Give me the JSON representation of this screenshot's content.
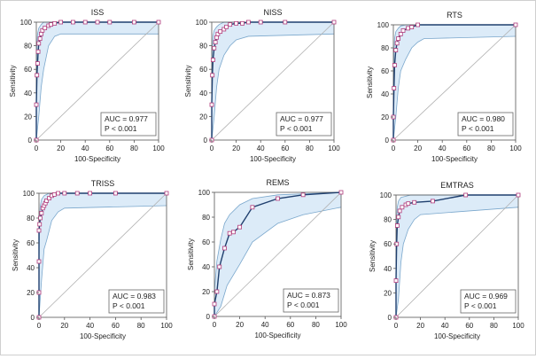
{
  "figure_axis_labels": {
    "x": "100-Specificity",
    "y": "Sensitivity"
  },
  "colors": {
    "curve": "#1f3f6e",
    "band_fill": "#dcebf8",
    "band_edge": "#7aa7cc",
    "diagonal": "#b0b0b0",
    "marker": "#b03a7a",
    "box": "#666666"
  },
  "chart_data": [
    {
      "type": "line",
      "title": "ISS",
      "xlabel": "100-Specificity",
      "ylabel": "Sensitivity",
      "xlim": [
        0,
        100
      ],
      "ylim": [
        0,
        100
      ],
      "xticks": [
        0,
        20,
        40,
        60,
        80,
        100
      ],
      "yticks": [
        0,
        20,
        40,
        60,
        80,
        100
      ],
      "auc": "AUC = 0.977",
      "p": "P < 0.001",
      "series": [
        {
          "name": "ROC",
          "x": [
            0,
            0,
            0.5,
            1,
            1.5,
            2,
            3,
            4,
            5,
            7,
            10,
            12,
            15,
            20,
            30,
            40,
            50,
            60,
            80,
            100
          ],
          "y": [
            0,
            30,
            55,
            65,
            75,
            82,
            86,
            90,
            93,
            95,
            97,
            98,
            99,
            100,
            100,
            100,
            100,
            100,
            100,
            100
          ]
        },
        {
          "name": "CI upper",
          "x": [
            0,
            0.5,
            1,
            2,
            4,
            6,
            8,
            100
          ],
          "y": [
            40,
            80,
            90,
            95,
            98,
            100,
            100,
            100
          ]
        },
        {
          "name": "CI lower",
          "x": [
            0,
            2,
            4,
            6,
            8,
            10,
            15,
            20,
            100
          ],
          "y": [
            0,
            20,
            45,
            60,
            70,
            80,
            88,
            90,
            90
          ]
        }
      ]
    },
    {
      "type": "line",
      "title": "NISS",
      "xlabel": "100-Specificity",
      "ylabel": "Sensitivity",
      "xlim": [
        0,
        100
      ],
      "ylim": [
        0,
        100
      ],
      "xticks": [
        0,
        20,
        40,
        60,
        80,
        100
      ],
      "yticks": [
        0,
        20,
        40,
        60,
        80,
        100
      ],
      "auc": "AUC = 0.977",
      "p": "P < 0.001",
      "series": [
        {
          "name": "ROC",
          "x": [
            0,
            0,
            0.5,
            1,
            2,
            3,
            4,
            5,
            7,
            10,
            12,
            15,
            20,
            25,
            30,
            40,
            60,
            100
          ],
          "y": [
            0,
            30,
            55,
            68,
            78,
            83,
            87,
            90,
            92,
            94,
            96,
            98,
            99,
            99,
            100,
            100,
            100,
            100
          ]
        },
        {
          "name": "CI upper",
          "x": [
            0,
            0.5,
            1,
            2,
            4,
            6,
            10,
            100
          ],
          "y": [
            40,
            78,
            88,
            93,
            96,
            98,
            100,
            100
          ]
        },
        {
          "name": "CI lower",
          "x": [
            0,
            2,
            4,
            6,
            10,
            15,
            20,
            30,
            100
          ],
          "y": [
            0,
            20,
            45,
            60,
            72,
            80,
            85,
            88,
            90
          ]
        }
      ]
    },
    {
      "type": "line",
      "title": "RTS",
      "xlabel": "100-Specificity",
      "ylabel": "Sensitivity",
      "xlim": [
        0,
        100
      ],
      "ylim": [
        0,
        100
      ],
      "xticks": [
        0,
        20,
        40,
        60,
        80,
        100
      ],
      "yticks": [
        0,
        20,
        40,
        60,
        80,
        100
      ],
      "auc": "AUC = 0.980",
      "p": "P < 0.001",
      "series": [
        {
          "name": "ROC",
          "x": [
            0,
            0,
            0.5,
            1,
            2,
            3,
            4,
            6,
            8,
            12,
            15,
            20,
            100
          ],
          "y": [
            0,
            20,
            45,
            65,
            78,
            84,
            88,
            92,
            95,
            97,
            98,
            100,
            100
          ]
        },
        {
          "name": "CI upper",
          "x": [
            0,
            0.5,
            1,
            2,
            4,
            6,
            10,
            100
          ],
          "y": [
            35,
            75,
            88,
            94,
            97,
            99,
            100,
            100
          ]
        },
        {
          "name": "CI lower",
          "x": [
            0,
            2,
            4,
            6,
            10,
            15,
            20,
            25,
            100
          ],
          "y": [
            0,
            20,
            45,
            60,
            70,
            80,
            85,
            88,
            90
          ]
        }
      ]
    },
    {
      "type": "line",
      "title": "TRISS",
      "xlabel": "100-Specificity",
      "ylabel": "Sensitivity",
      "xlim": [
        0,
        100
      ],
      "ylim": [
        0,
        100
      ],
      "xticks": [
        0,
        20,
        40,
        60,
        80,
        100
      ],
      "yticks": [
        0,
        20,
        40,
        60,
        80,
        100
      ],
      "auc": "AUC = 0.983",
      "p": "P < 0.001",
      "series": [
        {
          "name": "ROC",
          "x": [
            0,
            0,
            0,
            0,
            0.5,
            1,
            2,
            3,
            4,
            5,
            6,
            8,
            10,
            12,
            15,
            20,
            30,
            40,
            60,
            100
          ],
          "y": [
            0,
            20,
            45,
            70,
            75,
            80,
            84,
            88,
            90,
            92,
            94,
            96,
            98,
            99,
            100,
            100,
            100,
            100,
            100,
            100
          ]
        },
        {
          "name": "CI upper",
          "x": [
            0,
            0.5,
            1,
            2,
            4,
            6,
            8,
            100
          ],
          "y": [
            45,
            80,
            90,
            95,
            98,
            99,
            100,
            100
          ]
        },
        {
          "name": "CI lower",
          "x": [
            0,
            2,
            4,
            6,
            8,
            10,
            15,
            20,
            100
          ],
          "y": [
            0,
            30,
            55,
            62,
            70,
            78,
            85,
            88,
            90
          ]
        }
      ]
    },
    {
      "type": "line",
      "title": "REMS",
      "xlabel": "100-Specificity",
      "ylabel": "Sensitivity",
      "xlim": [
        0,
        100
      ],
      "ylim": [
        0,
        100
      ],
      "xticks": [
        0,
        20,
        40,
        60,
        80,
        100
      ],
      "yticks": [
        0,
        20,
        40,
        60,
        80,
        100
      ],
      "auc": "AUC = 0.873",
      "p": "P < 0.001",
      "series": [
        {
          "name": "ROC",
          "x": [
            0,
            0,
            2,
            4,
            8,
            12,
            15,
            20,
            30,
            50,
            70,
            100
          ],
          "y": [
            0,
            10,
            20,
            40,
            55,
            67,
            68,
            72,
            88,
            95,
            98,
            100
          ]
        },
        {
          "name": "CI upper",
          "x": [
            0,
            2,
            5,
            8,
            12,
            20,
            30,
            50,
            100
          ],
          "y": [
            20,
            45,
            62,
            75,
            82,
            90,
            95,
            98,
            100
          ]
        },
        {
          "name": "CI lower",
          "x": [
            0,
            5,
            10,
            20,
            30,
            50,
            70,
            100
          ],
          "y": [
            0,
            8,
            25,
            42,
            60,
            75,
            82,
            88
          ]
        }
      ]
    },
    {
      "type": "line",
      "title": "EMTRAS",
      "xlabel": "100-Specificity",
      "ylabel": "Sensitivity",
      "xlim": [
        0,
        100
      ],
      "ylim": [
        0,
        100
      ],
      "xticks": [
        0,
        20,
        40,
        60,
        80,
        100
      ],
      "yticks": [
        0,
        20,
        40,
        60,
        80,
        100
      ],
      "auc": "AUC = 0.969",
      "p": "P < 0.001",
      "series": [
        {
          "name": "ROC",
          "x": [
            0,
            0,
            0.5,
            1,
            2,
            3,
            5,
            8,
            10,
            15,
            30,
            57,
            100
          ],
          "y": [
            0,
            30,
            60,
            75,
            82,
            87,
            90,
            92,
            93,
            94,
            95,
            100,
            100
          ]
        },
        {
          "name": "CI upper",
          "x": [
            0,
            0.5,
            1,
            2,
            4,
            8,
            12,
            100
          ],
          "y": [
            40,
            80,
            90,
            95,
            98,
            99,
            100,
            100
          ]
        },
        {
          "name": "CI lower",
          "x": [
            0,
            2,
            4,
            6,
            10,
            15,
            20,
            100
          ],
          "y": [
            0,
            15,
            45,
            60,
            72,
            80,
            84,
            90
          ]
        }
      ]
    }
  ]
}
